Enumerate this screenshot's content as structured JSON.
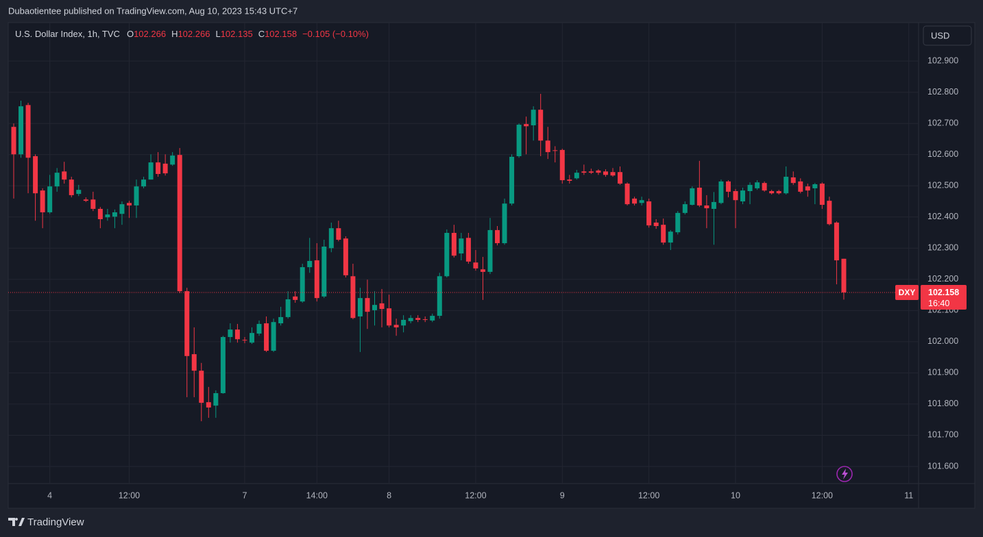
{
  "publisher_line": "Dubaotientee published on TradingView.com, Aug 10, 2023 15:43 UTC+7",
  "brand": "TradingView",
  "chart_data": {
    "type": "candlestick",
    "title": "U.S. Dollar Index, 1h, TVC",
    "ohlc_labels": [
      "O",
      "H",
      "L",
      "C"
    ],
    "change": "−0.105 (−0.10%)",
    "currency": "USD",
    "symbol": "DXY",
    "countdown": "16:40",
    "up_color": "#089981",
    "down_color": "#f23645",
    "grid": true,
    "categories": [
      null,
      null,
      null,
      null,
      null,
      "4",
      null,
      null,
      null,
      null,
      null,
      null,
      null,
      null,
      null,
      null,
      "12:00",
      null,
      null,
      null,
      null,
      null,
      null,
      null,
      null,
      null,
      null,
      null,
      null,
      null,
      null,
      null,
      "7",
      null,
      null,
      null,
      null,
      null,
      null,
      null,
      null,
      null,
      "14:00",
      null,
      null,
      null,
      null,
      null,
      null,
      null,
      null,
      null,
      "8",
      null,
      null,
      null,
      null,
      null,
      null,
      null,
      null,
      null,
      null,
      null,
      "12:00",
      null,
      null,
      null,
      null,
      null,
      null,
      null,
      null,
      null,
      null,
      null,
      "9",
      null,
      null,
      null,
      null,
      null,
      null,
      null,
      null,
      null,
      null,
      null,
      "12:00",
      null,
      null,
      null,
      null,
      null,
      null,
      null,
      null,
      null,
      null,
      null,
      "10",
      null,
      null,
      null,
      null,
      null,
      null,
      null,
      null,
      null,
      null,
      null,
      "12:00",
      null,
      null,
      null,
      null,
      null,
      null,
      null,
      null,
      null,
      null,
      null,
      "11"
    ],
    "open": [
      102.689,
      102.601,
      102.759,
      102.595,
      102.485,
      102.415,
      102.498,
      102.546,
      102.52,
      102.474,
      102.456,
      102.456,
      102.426,
      102.399,
      102.401,
      102.41,
      102.445,
      102.437,
      102.498,
      102.52,
      102.575,
      102.571,
      102.568,
      102.599,
      102.162,
      101.96,
      101.907,
      101.806,
      101.795,
      101.835,
      102.015,
      102.039,
      102.006,
      101.997,
      102.026,
      102.059,
      101.971,
      102.059,
      102.079,
      102.145,
      102.129,
      102.239,
      102.261,
      102.145,
      102.3,
      102.364,
      102.331,
      102.21,
      102.081,
      102.14,
      102.101,
      102.123,
      102.107,
      102.054,
      102.052,
      102.066,
      102.076,
      102.072,
      102.068,
      102.083,
      102.21,
      102.349,
      102.283,
      102.333,
      102.254,
      102.232,
      102.224,
      102.358,
      102.316,
      102.443,
      102.595,
      102.698,
      102.694,
      102.744,
      102.645,
      102.614,
      102.615,
      102.52,
      102.524,
      102.546,
      102.546,
      102.549,
      102.546,
      102.544,
      102.544,
      102.507,
      102.459,
      102.445,
      102.45,
      102.382,
      102.375,
      102.318,
      102.351,
      102.413,
      102.439,
      102.494,
      102.437,
      102.426,
      102.445,
      102.514,
      102.483,
      102.45,
      102.483,
      102.492,
      102.509,
      102.483,
      102.483,
      102.476,
      102.527,
      102.514,
      102.498,
      102.492,
      102.507,
      102.452,
      102.382,
      102.266,
      null,
      null,
      null,
      null,
      null,
      null,
      null,
      null,
      null
    ],
    "high": [
      102.7,
      102.773,
      102.766,
      102.601,
      102.492,
      102.535,
      102.557,
      102.577,
      102.529,
      102.503,
      102.463,
      102.481,
      102.432,
      102.426,
      102.424,
      102.45,
      102.452,
      102.52,
      102.529,
      102.601,
      102.608,
      102.601,
      102.608,
      102.621,
      102.173,
      102.046,
      101.932,
      101.855,
      101.844,
      102.019,
      102.059,
      102.057,
      102.015,
      102.046,
      102.068,
      102.081,
      102.074,
      102.112,
      102.162,
      102.162,
      102.25,
      102.333,
      102.316,
      102.327,
      102.382,
      102.388,
      102.338,
      102.25,
      102.173,
      102.199,
      102.162,
      102.169,
      102.151,
      102.074,
      102.085,
      102.085,
      102.085,
      102.081,
      102.09,
      102.221,
      102.36,
      102.375,
      102.349,
      102.349,
      102.294,
      102.272,
      102.397,
      102.371,
      102.459,
      102.601,
      102.7,
      102.722,
      102.755,
      102.795,
      102.689,
      102.627,
      102.619,
      102.535,
      102.551,
      102.568,
      102.555,
      102.553,
      102.553,
      102.557,
      102.562,
      102.511,
      102.465,
      102.465,
      102.459,
      102.393,
      102.395,
      102.358,
      102.419,
      102.45,
      102.498,
      102.58,
      102.47,
      102.48,
      102.52,
      102.518,
      102.49,
      102.494,
      102.511,
      102.518,
      102.514,
      102.487,
      102.487,
      102.562,
      102.546,
      102.524,
      102.507,
      102.509,
      102.511,
      102.465,
      102.386,
      102.266,
      null,
      null,
      null,
      null,
      null,
      null,
      null,
      null,
      null
    ],
    "low": [
      102.459,
      102.59,
      102.476,
      102.388,
      102.364,
      102.41,
      102.481,
      102.507,
      102.463,
      102.467,
      102.448,
      102.419,
      102.364,
      102.388,
      102.364,
      102.375,
      102.397,
      102.397,
      102.492,
      102.52,
      102.529,
      102.533,
      102.564,
      102.156,
      101.822,
      101.822,
      101.745,
      101.756,
      101.756,
      101.833,
      101.997,
      101.997,
      101.995,
      101.993,
      102.019,
      101.967,
      101.967,
      102.052,
      102.074,
      102.125,
      102.125,
      102.221,
      102.129,
      102.14,
      102.287,
      102.322,
      102.206,
      102.072,
      101.967,
      102.041,
      102.052,
      102.046,
      102.046,
      102.019,
      102.03,
      102.059,
      102.063,
      102.063,
      102.063,
      102.074,
      102.206,
      102.27,
      102.261,
      102.25,
      102.228,
      102.134,
      102.217,
      102.309,
      102.311,
      102.437,
      102.59,
      102.601,
      102.645,
      102.595,
      102.586,
      102.575,
      102.507,
      102.507,
      102.52,
      102.535,
      102.538,
      102.535,
      102.529,
      102.529,
      102.503,
      102.437,
      102.437,
      102.437,
      102.366,
      102.362,
      102.311,
      102.294,
      102.344,
      102.408,
      102.437,
      102.432,
      102.364,
      102.311,
      102.441,
      102.463,
      102.364,
      102.441,
      102.441,
      102.487,
      102.481,
      102.472,
      102.472,
      102.472,
      102.503,
      102.476,
      102.465,
      102.441,
      102.426,
      102.373,
      102.184,
      102.135,
      null,
      null,
      null,
      null,
      null,
      null,
      null,
      null,
      null
    ],
    "close": [
      102.601,
      102.755,
      102.59,
      102.476,
      102.415,
      102.498,
      102.542,
      102.52,
      102.47,
      102.487,
      102.452,
      102.426,
      102.393,
      102.408,
      102.415,
      102.441,
      102.437,
      102.498,
      102.52,
      102.575,
      102.538,
      102.54,
      102.597,
      102.162,
      101.954,
      101.907,
      101.804,
      101.789,
      101.835,
      102.015,
      102.039,
      102.008,
      102.004,
      102.028,
      102.057,
      101.971,
      102.063,
      102.079,
      102.136,
      102.134,
      102.239,
      102.259,
      102.14,
      102.305,
      102.364,
      102.327,
      102.213,
      102.076,
      102.14,
      102.096,
      102.118,
      102.105,
      102.052,
      102.046,
      102.07,
      102.076,
      102.07,
      102.07,
      102.083,
      102.21,
      102.349,
      102.276,
      102.331,
      102.257,
      102.235,
      102.224,
      102.358,
      102.316,
      102.443,
      102.593,
      102.696,
      102.691,
      102.744,
      102.645,
      102.608,
      102.612,
      102.518,
      102.516,
      102.542,
      102.542,
      102.542,
      102.542,
      102.535,
      102.533,
      102.507,
      102.441,
      102.443,
      102.454,
      102.373,
      102.371,
      102.318,
      102.353,
      102.413,
      102.441,
      102.492,
      102.437,
      102.428,
      102.448,
      102.514,
      102.481,
      102.454,
      102.485,
      102.503,
      102.511,
      102.485,
      102.476,
      102.476,
      102.529,
      102.509,
      102.481,
      102.485,
      102.505,
      102.439,
      102.377,
      102.261,
      102.158,
      null,
      null,
      null,
      null,
      null,
      null,
      null,
      null,
      null
    ],
    "ylim": [
      101.545,
      103.019
    ],
    "yticks": [
      {
        "value": 101.6,
        "label": "101.600"
      },
      {
        "value": 101.7,
        "label": "101.700"
      },
      {
        "value": 101.8,
        "label": "101.800"
      },
      {
        "value": 101.9,
        "label": "101.900"
      },
      {
        "value": 102.0,
        "label": "102.000"
      },
      {
        "value": 102.1,
        "label": "102.100"
      },
      {
        "value": 102.2,
        "label": "102.200"
      },
      {
        "value": 102.3,
        "label": "102.300"
      },
      {
        "value": 102.4,
        "label": "102.400"
      },
      {
        "value": 102.5,
        "label": "102.500"
      },
      {
        "value": 102.6,
        "label": "102.600"
      },
      {
        "value": 102.7,
        "label": "102.700"
      },
      {
        "value": 102.8,
        "label": "102.800"
      },
      {
        "value": 102.9,
        "label": "102.900"
      }
    ]
  }
}
